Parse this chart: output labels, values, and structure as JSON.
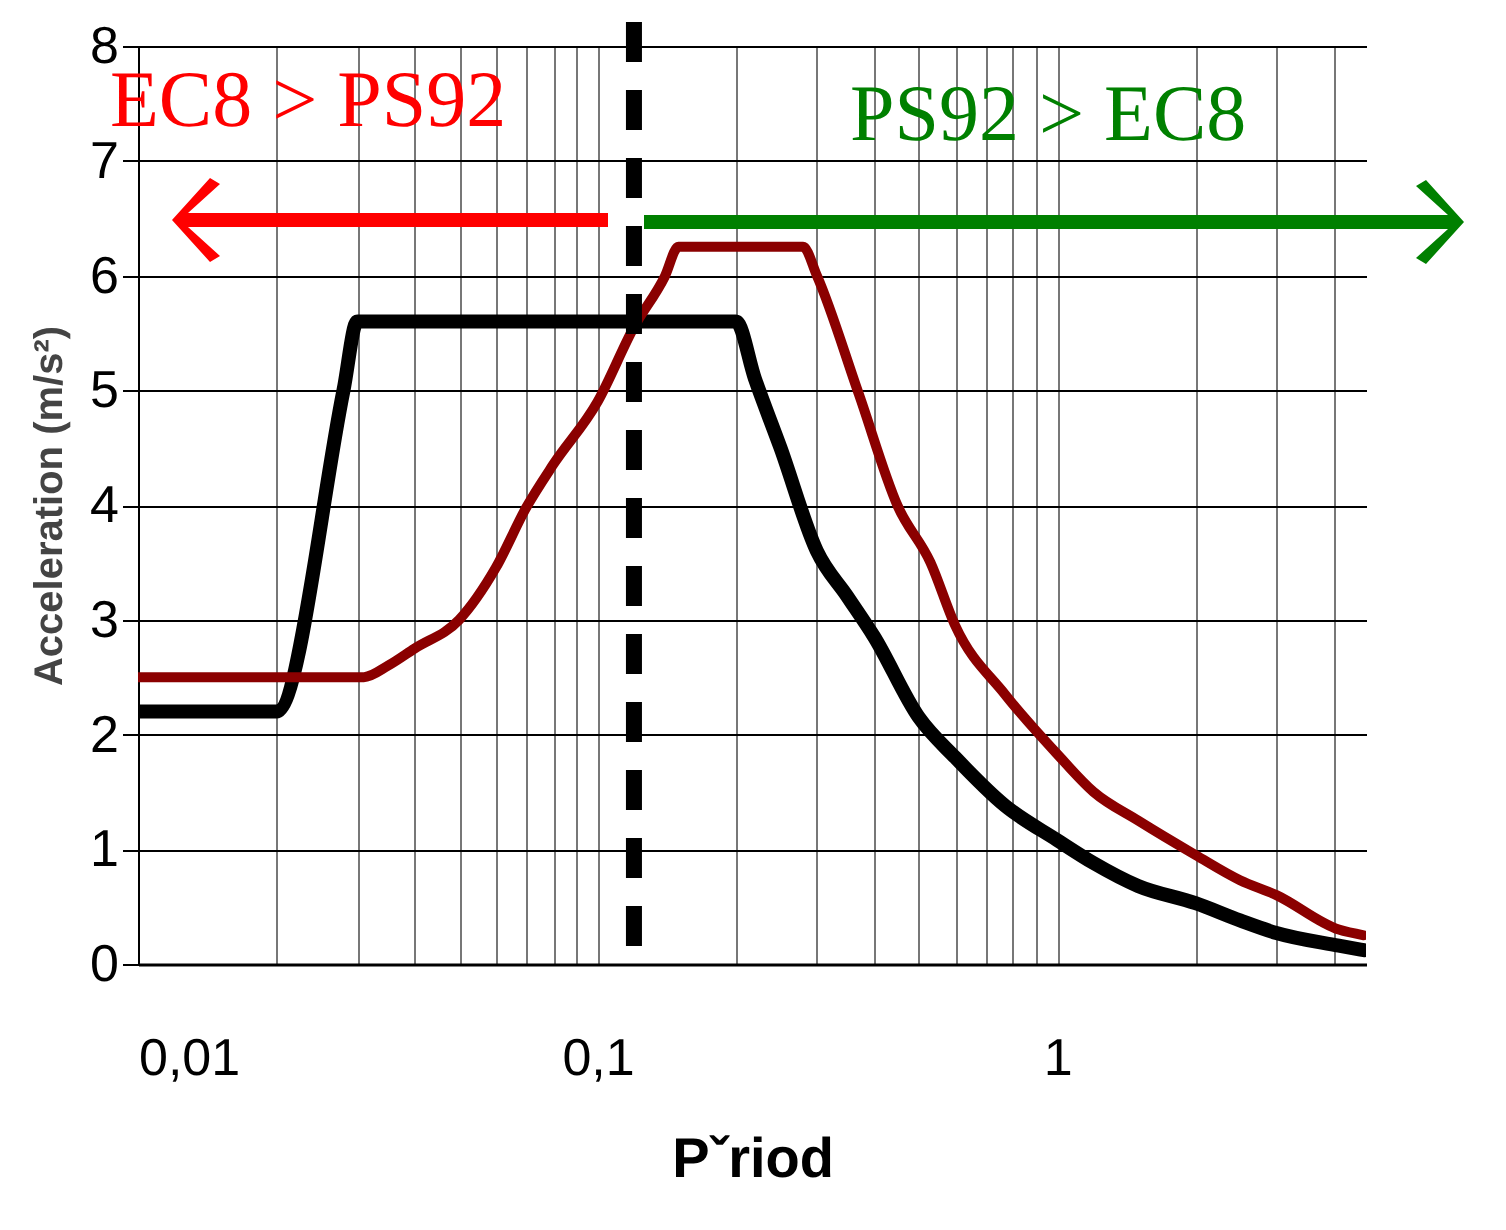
{
  "chart_data": {
    "type": "line",
    "xlabel": "Pˇriod",
    "ylabel": "Acceleration (m/s²)",
    "annotations": [
      "EC8 > PS92",
      "PS92 > EC8"
    ],
    "log": "x",
    "grid": true,
    "xlim": [
      0.01,
      4.7
    ],
    "xticks": [
      {
        "value": 0.01,
        "label": "0,01"
      },
      {
        "value": 0.02,
        "label": null
      },
      {
        "value": 0.03,
        "label": null
      },
      {
        "value": 0.04,
        "label": null
      },
      {
        "value": 0.05,
        "label": null
      },
      {
        "value": 0.06,
        "label": null
      },
      {
        "value": 0.07,
        "label": null
      },
      {
        "value": 0.08,
        "label": null
      },
      {
        "value": 0.09,
        "label": null
      },
      {
        "value": 0.1,
        "label": "0,1"
      },
      {
        "value": 0.2,
        "label": null
      },
      {
        "value": 0.3,
        "label": null
      },
      {
        "value": 0.4,
        "label": null
      },
      {
        "value": 0.5,
        "label": null
      },
      {
        "value": 0.6,
        "label": null
      },
      {
        "value": 0.7,
        "label": null
      },
      {
        "value": 0.8,
        "label": null
      },
      {
        "value": 0.9,
        "label": null
      },
      {
        "value": 1,
        "label": "1"
      },
      {
        "value": 2,
        "label": null
      },
      {
        "value": 3,
        "label": null
      },
      {
        "value": 4,
        "label": null
      }
    ],
    "ylim": [
      0,
      8
    ],
    "yticks": [
      0,
      1,
      2,
      3,
      4,
      5,
      6,
      7,
      8
    ],
    "series": [
      {
        "color": "#000000",
        "x": [
          0.01,
          0.02,
          0.028,
          0.03,
          0.2,
          0.22,
          0.25,
          0.3,
          0.35,
          0.4,
          0.5,
          0.6,
          0.77,
          1,
          1.2,
          1.5,
          2,
          2.5,
          3,
          4.1,
          4.65
        ],
        "values": [
          2.2,
          2.2,
          5.0,
          5.6,
          5.6,
          5.1,
          4.5,
          3.6,
          3.2,
          2.85,
          2.15,
          1.8,
          1.38,
          1.08,
          0.88,
          0.68,
          0.53,
          0.38,
          0.27,
          0.16,
          0.12
        ]
      },
      {
        "color": "#8b0000",
        "x": [
          0.01,
          0.031,
          0.035,
          0.04,
          0.05,
          0.06,
          0.07,
          0.08,
          0.1,
          0.12,
          0.14,
          0.15,
          0.28,
          0.3,
          0.37,
          0.45,
          0.53,
          0.6,
          0.77,
          1,
          1.2,
          1.5,
          2,
          2.5,
          3,
          4.1,
          4.65
        ],
        "values": [
          2.5,
          2.5,
          2.6,
          2.75,
          3.0,
          3.45,
          3.98,
          4.35,
          4.9,
          5.55,
          5.99,
          6.25,
          6.25,
          6.0,
          4.97,
          3.99,
          3.5,
          2.95,
          2.35,
          1.83,
          1.5,
          1.25,
          0.95,
          0.73,
          0.6,
          0.3,
          0.25
        ]
      }
    ],
    "ref_lines": [
      {
        "axis": "x",
        "value": 0.12,
        "line_style": "dashed",
        "color": "#000000"
      }
    ]
  }
}
